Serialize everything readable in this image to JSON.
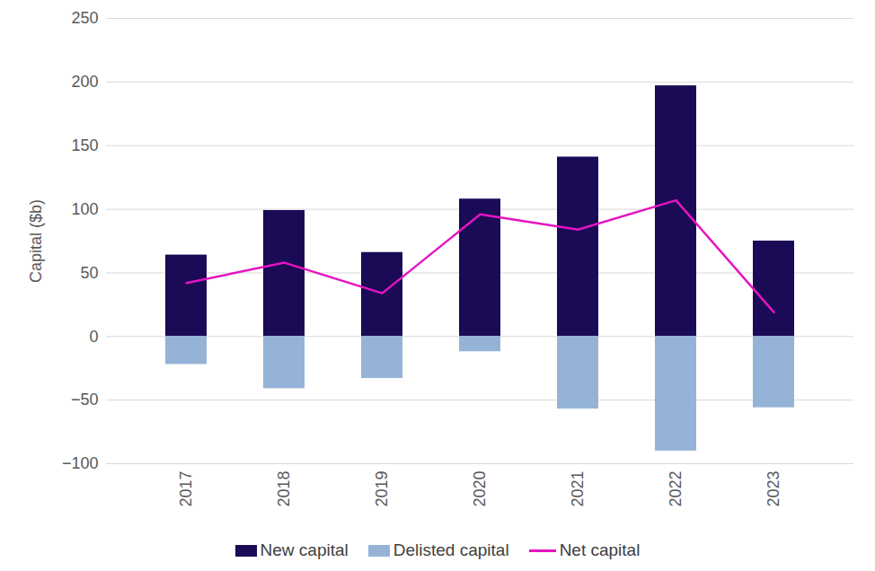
{
  "chart_data": {
    "type": "bar",
    "y_label": "Capital ($b)",
    "categories": [
      "2017",
      "2018",
      "2019",
      "2020",
      "2021",
      "2022",
      "2023"
    ],
    "series": [
      {
        "name": "New capital",
        "type": "bar",
        "color": "#1b0a56",
        "values": [
          64,
          99,
          66,
          108,
          141,
          197,
          75
        ]
      },
      {
        "name": "Delisted capital",
        "type": "bar",
        "color": "#95b3d7",
        "values": [
          -22,
          -41,
          -33,
          -12,
          -57,
          -90,
          -56
        ]
      },
      {
        "name": "Net capital",
        "type": "line",
        "color": "#e614c0",
        "values": [
          42,
          58,
          34,
          96,
          84,
          107,
          19
        ]
      }
    ],
    "ylim": [
      -100,
      250
    ],
    "yticks": [
      -100,
      -50,
      0,
      50,
      100,
      150,
      200,
      250
    ],
    "grid": true,
    "legend": "bottom"
  }
}
